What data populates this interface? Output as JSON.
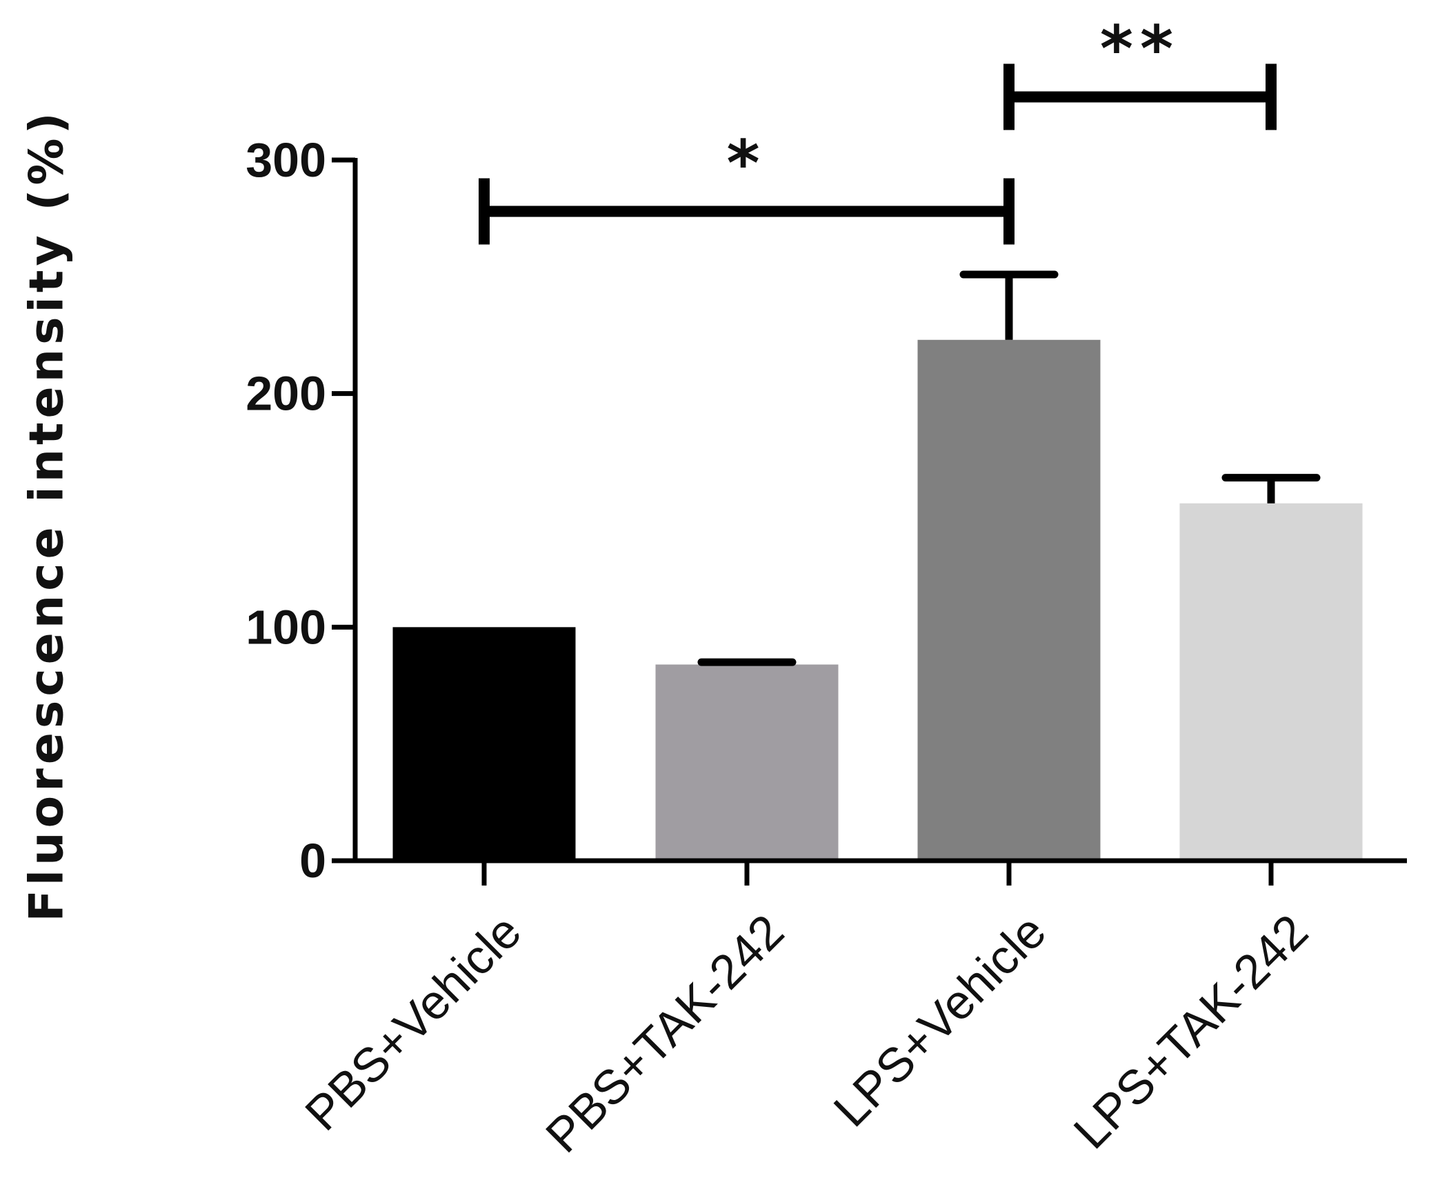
{
  "chart_data": {
    "type": "bar",
    "title": "",
    "xlabel": "",
    "ylabel": "Fluorescence intensity (%)",
    "ylim": [
      0,
      300
    ],
    "yticks": [
      0,
      100,
      200,
      300
    ],
    "grid": false,
    "legend": "none",
    "categories": [
      "PBS+Vehicle",
      "PBS+TAK-242",
      "LPS+Vehicle",
      "LPS+TAK-242"
    ],
    "values": [
      100,
      84,
      223,
      153
    ],
    "errors": [
      0,
      1,
      28,
      11
    ],
    "colors": [
      "#000000",
      "#a09da2",
      "#808080",
      "#d6d6d6"
    ],
    "significance": [
      {
        "from": 0,
        "to": 2,
        "label": "*",
        "y": 278
      },
      {
        "from": 2,
        "to": 3,
        "label": "**",
        "y": 327
      }
    ]
  }
}
